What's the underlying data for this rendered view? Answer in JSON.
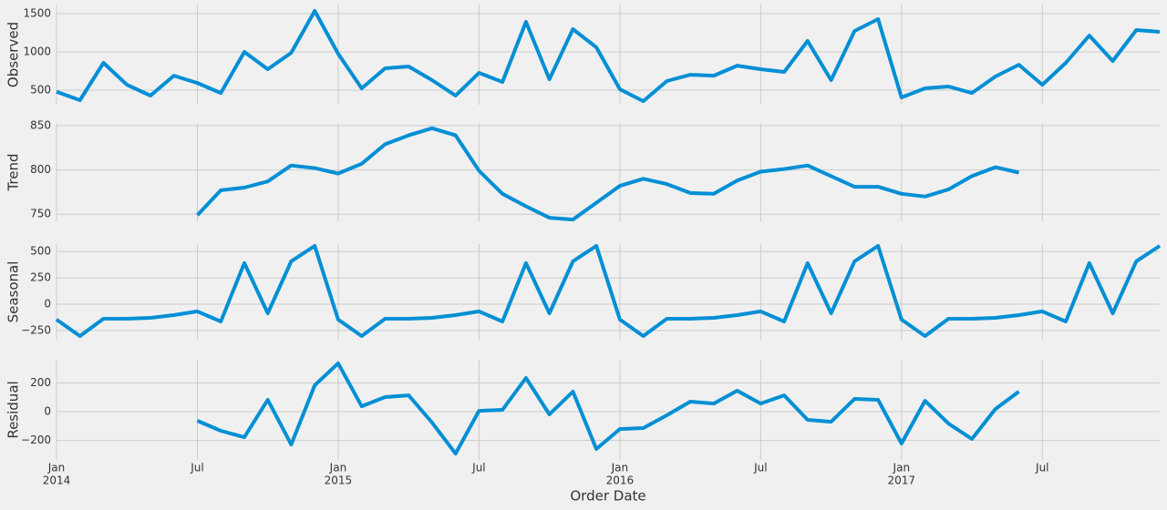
{
  "chart_data": {
    "type": "line",
    "color": "#008fd5",
    "grid": true,
    "xlabel": "Order Date",
    "xlim": [
      "2014-01",
      "2017-12"
    ],
    "x": [
      "2014-01",
      "2014-02",
      "2014-03",
      "2014-04",
      "2014-05",
      "2014-06",
      "2014-07",
      "2014-08",
      "2014-09",
      "2014-10",
      "2014-11",
      "2014-12",
      "2015-01",
      "2015-02",
      "2015-03",
      "2015-04",
      "2015-05",
      "2015-06",
      "2015-07",
      "2015-08",
      "2015-09",
      "2015-10",
      "2015-11",
      "2015-12",
      "2016-01",
      "2016-02",
      "2016-03",
      "2016-04",
      "2016-05",
      "2016-06",
      "2016-07",
      "2016-08",
      "2016-09",
      "2016-10",
      "2016-11",
      "2016-12",
      "2017-01",
      "2017-02",
      "2017-03",
      "2017-04",
      "2017-05",
      "2017-06",
      "2017-07",
      "2017-08",
      "2017-09",
      "2017-10",
      "2017-11",
      "2017-12"
    ],
    "xticks": [
      {
        "value": "2014-01",
        "label": "Jan",
        "year": "2014"
      },
      {
        "value": "2014-07",
        "label": "Jul"
      },
      {
        "value": "2015-01",
        "label": "Jan",
        "year": "2015"
      },
      {
        "value": "2015-07",
        "label": "Jul"
      },
      {
        "value": "2016-01",
        "label": "Jan",
        "year": "2016"
      },
      {
        "value": "2016-07",
        "label": "Jul"
      },
      {
        "value": "2017-01",
        "label": "Jan",
        "year": "2017"
      },
      {
        "value": "2017-07",
        "label": "Jul"
      }
    ],
    "panels": [
      {
        "ylabel": "Observed",
        "ylim": [
          310,
          1619
        ],
        "yticks": [
          500,
          1000,
          1500
        ],
        "values": [
          480,
          370,
          857,
          571,
          429,
          690,
          595,
          464,
          1000,
          774,
          988,
          1536,
          976,
          524,
          786,
          810,
          631,
          429,
          726,
          607,
          1393,
          643,
          1298,
          1060,
          512,
          357,
          619,
          702,
          690,
          821,
          774,
          738,
          1143,
          631,
          1274,
          1429,
          405,
          524,
          548,
          464,
          679,
          833,
          571,
          857,
          1214,
          881,
          1286,
          1262
        ]
      },
      {
        "ylabel": "Trend",
        "ylim": [
          742,
          853
        ],
        "yticks": [
          750,
          800,
          850
        ],
        "values": [
          null,
          null,
          null,
          null,
          null,
          null,
          749,
          777,
          780,
          787,
          805,
          802,
          796,
          807,
          829,
          839,
          847,
          839,
          799,
          773,
          759,
          746,
          744,
          763,
          782,
          790,
          784,
          774,
          773,
          788,
          798,
          801,
          805,
          793,
          781,
          781,
          773,
          770,
          778,
          793,
          803,
          797,
          null,
          null,
          null,
          null,
          null,
          null
        ]
      },
      {
        "ylabel": "Seasonal",
        "ylim": [
          -338,
          571
        ],
        "yticks": [
          {
            "value": -250,
            "label": "−250"
          },
          0,
          250,
          500
        ],
        "values": [
          -147,
          -303,
          -139,
          -139,
          -130,
          -104,
          -69,
          -165,
          390,
          -87,
          407,
          554,
          -147,
          -303,
          -139,
          -139,
          -130,
          -104,
          -69,
          -165,
          390,
          -87,
          407,
          554,
          -147,
          -303,
          -139,
          -139,
          -130,
          -104,
          -69,
          -165,
          390,
          -87,
          407,
          554,
          -147,
          -303,
          -139,
          -139,
          -130,
          -104,
          -69,
          -165,
          390,
          -87,
          407,
          554
        ]
      },
      {
        "ylabel": "Residual",
        "ylim": [
          -336,
          362
        ],
        "yticks": [
          {
            "value": -200,
            "label": "−200"
          },
          0,
          200
        ],
        "values": [
          null,
          null,
          null,
          null,
          null,
          null,
          -63,
          -133,
          -178,
          83,
          -229,
          184,
          337,
          38,
          102,
          114,
          -76,
          -292,
          6,
          13,
          235,
          -19,
          140,
          -260,
          -121,
          -114,
          -25,
          70,
          57,
          146,
          57,
          114,
          -57,
          -70,
          89,
          83,
          -222,
          76,
          -83,
          -190,
          19,
          140,
          null,
          null,
          null,
          null,
          null,
          null
        ]
      }
    ]
  }
}
